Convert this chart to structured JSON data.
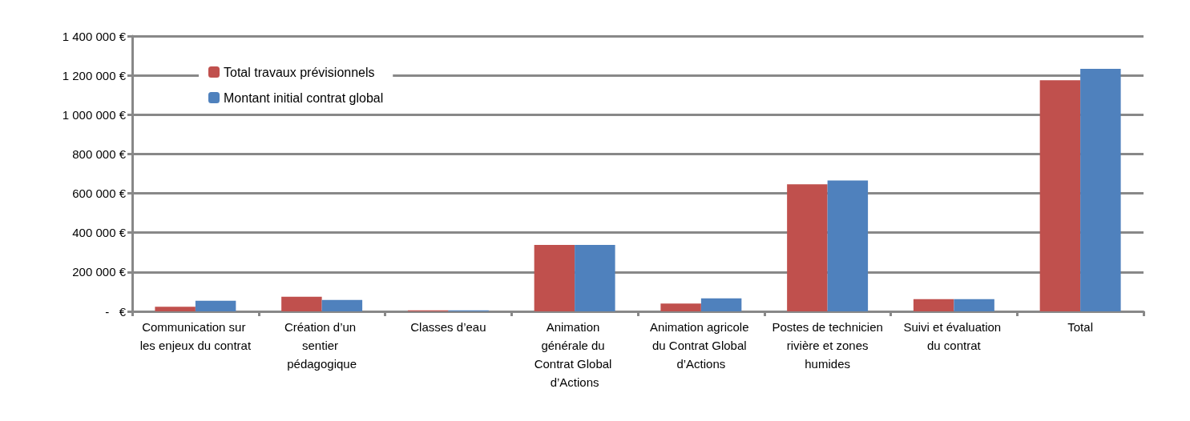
{
  "chart_data": {
    "type": "bar",
    "categories": [
      "Communication sur les enjeux du contrat",
      "Création d’un sentier pédagogique",
      "Classes d’eau",
      "Animation générale du Contrat Global d’Actions",
      "Animation agricole du Contrat Global d’Actions",
      "Postes de technicien rivière et zones humides",
      "Suivi et évaluation du contrat",
      "Total"
    ],
    "series": [
      {
        "name": "Total travaux prévisionnels",
        "color": "#c0504d",
        "values": [
          23000,
          74000,
          5000,
          338000,
          40000,
          646000,
          62000,
          1175000
        ]
      },
      {
        "name": "Montant initial contrat global",
        "color": "#4f81bd",
        "values": [
          54000,
          58000,
          5000,
          338000,
          66000,
          665000,
          62000,
          1233000
        ]
      }
    ],
    "ylim": [
      0,
      1400000
    ],
    "yticks": [
      {
        "value": 0,
        "label": "-   €"
      },
      {
        "value": 200000,
        "label": "200 000 €"
      },
      {
        "value": 400000,
        "label": "400 000 €"
      },
      {
        "value": 600000,
        "label": "600 000 €"
      },
      {
        "value": 800000,
        "label": "800 000 €"
      },
      {
        "value": 1000000,
        "label": "1 000 000 €"
      },
      {
        "value": 1200000,
        "label": "1 200 000 €"
      },
      {
        "value": 1400000,
        "label": "1 400 000 €"
      }
    ],
    "grid": "y",
    "legend": "top left"
  }
}
